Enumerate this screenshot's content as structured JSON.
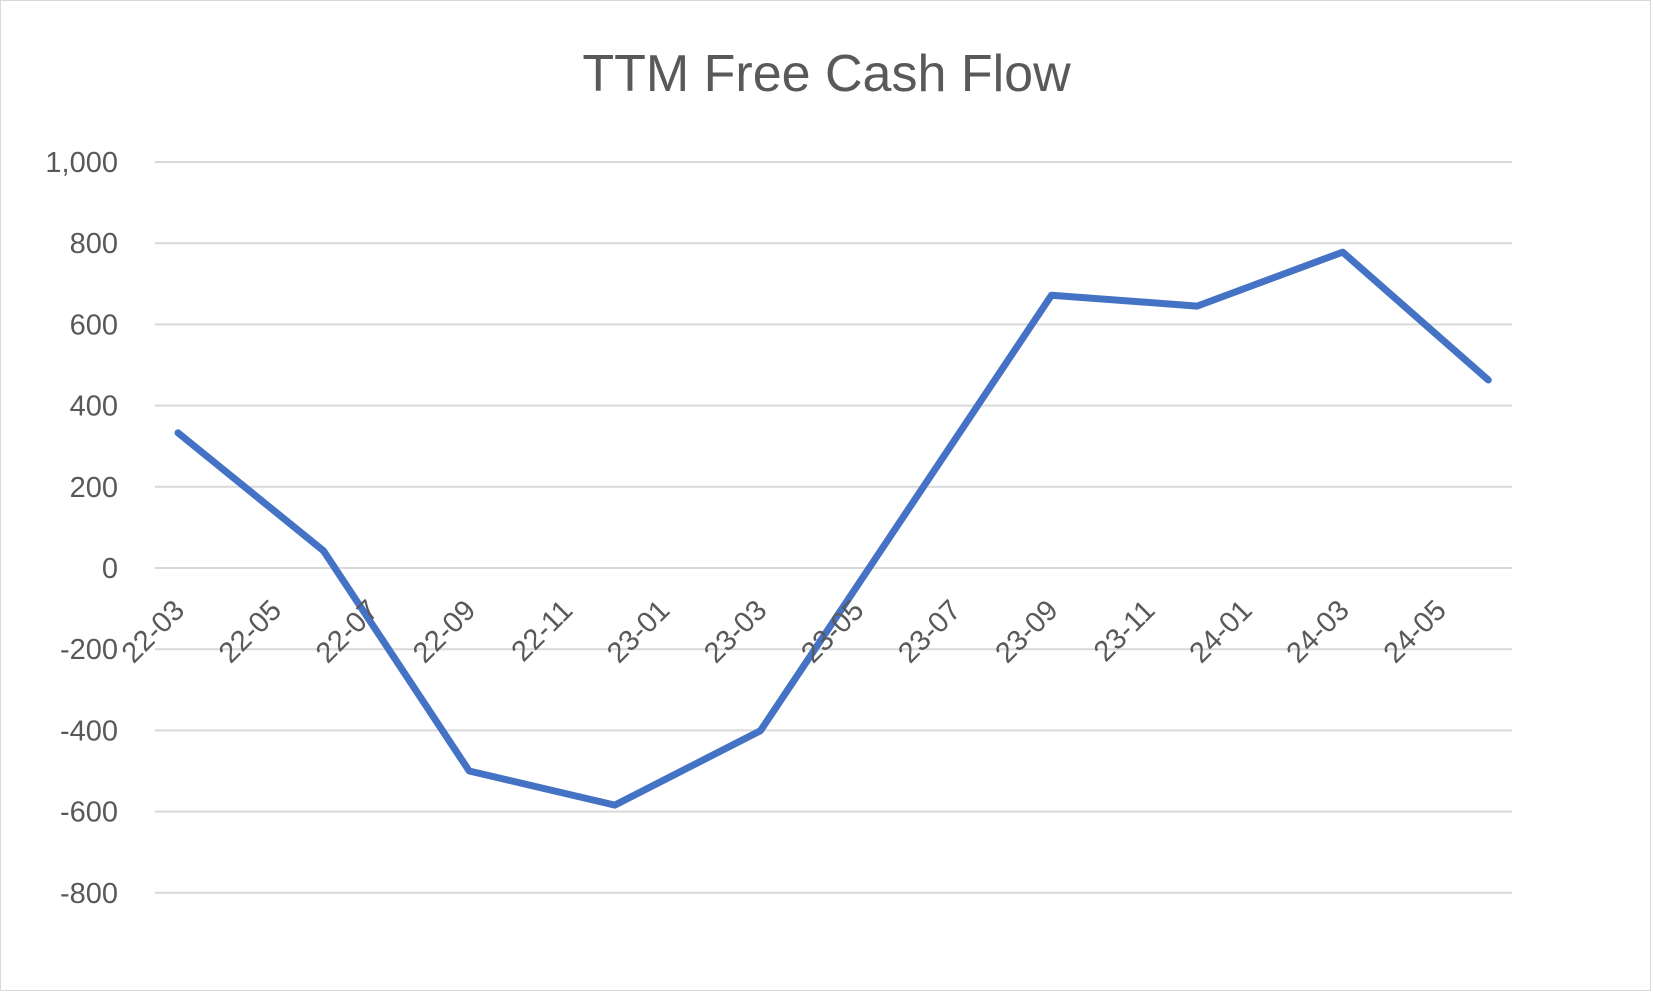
{
  "chart_data": {
    "type": "line",
    "title": "TTM Free Cash Flow",
    "xlabel": "",
    "ylabel": "",
    "ylim": [
      -800,
      1000
    ],
    "yticks": [
      1000,
      800,
      600,
      400,
      200,
      0,
      -200,
      -400,
      -600,
      -800
    ],
    "ytick_labels": [
      "1,000",
      "800",
      "600",
      "400",
      "200",
      "0",
      "-200",
      "-400",
      "-600",
      "-800"
    ],
    "xtick_labels": [
      "22-03",
      "22-05",
      "22-07",
      "22-09",
      "22-11",
      "23-01",
      "23-03",
      "23-05",
      "23-07",
      "23-09",
      "23-11",
      "24-01",
      "24-03",
      "24-05"
    ],
    "grid": true,
    "legend": null,
    "line_color": "#4472c4",
    "series": [
      {
        "name": "TTM Free Cash Flow",
        "x": [
          "22-03",
          "22-06",
          "22-09",
          "22-12",
          "23-03",
          "23-06",
          "23-09",
          "23-12",
          "24-03",
          "24-06"
        ],
        "values": [
          333,
          42,
          -500,
          -584,
          -401,
          136,
          672,
          645,
          778,
          463
        ]
      }
    ]
  }
}
